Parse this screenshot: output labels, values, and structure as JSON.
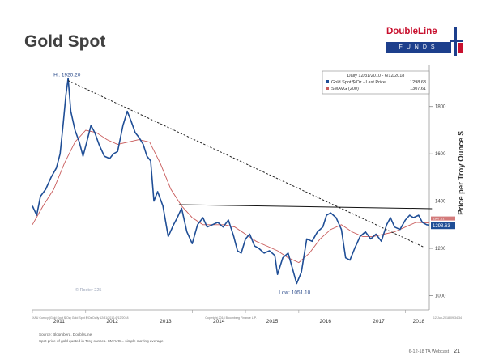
{
  "slide": {
    "title": "Gold Spot",
    "logo_top": "DoubleLine",
    "logo_bottom": "FUNDS",
    "source_line1": "Source: Bloomberg, DoubleLine",
    "source_line2": "Spot price of gold quoted in Troy ounces. SMAVG = simple moving average.",
    "footer_code": "6-12-18 TA Webcast",
    "page_number": "21",
    "bloomberg_left": "XAU Curncy (Gold Spot $/Oz) Gold Spot $/Oz Daily 12/31/2010-6/12/2018",
    "bloomberg_mid": "Copyright 2018 Bloomberg Finance L.P.",
    "bloomberg_right": "12-Jun-2018 09:34:34"
  },
  "colors": {
    "price_line": "#1f4e96",
    "moving_average": "#c85a5a",
    "downtrend": "#222222",
    "resistance": "#111111",
    "last_price_box": "#1f4e96"
  },
  "chart_data": {
    "type": "line",
    "ylabel": "Price per Troy Ounce $",
    "yticks": [
      1000,
      1200,
      1400,
      1600,
      1800
    ],
    "ylim": [
      940,
      1960
    ],
    "xlim": [
      2011.0,
      2018.45
    ],
    "year_labels": [
      "2011",
      "2012",
      "2013",
      "2014",
      "2015",
      "2016",
      "2017",
      "2018"
    ],
    "year_label_positions": [
      2011.5,
      2012.5,
      2013.5,
      2014.5,
      2015.5,
      2016.5,
      2017.5,
      2018.25
    ],
    "legend": {
      "header": "Daily 12/31/2010 - 6/12/2018",
      "series": [
        {
          "name": "Gold Spot $/Oz - Last Price",
          "value": "1298.63"
        },
        {
          "name": "SMAVG (200)",
          "value": "1307.61"
        }
      ]
    },
    "annotations": {
      "high_label": "Hi: 1920.20",
      "high": {
        "x": 2011.67,
        "y": 1920
      },
      "low_label": "Low: 1051.10",
      "low": {
        "x": 2015.96,
        "y": 1051
      },
      "last_price_label": "1298.63",
      "moving_average_label": "1307.61",
      "chart_note": "© Roster 225"
    },
    "trendlines": [
      {
        "name": "downtrend",
        "x": [
          2011.67,
          2018.35
        ],
        "y": [
          1910,
          1205
        ]
      },
      {
        "name": "resistance",
        "x": [
          2013.75,
          2018.5
        ],
        "y": [
          1385,
          1368
        ]
      }
    ],
    "series": [
      {
        "name": "Gold Spot $/Oz - Last Price",
        "x": [
          2011.0,
          2011.08,
          2011.15,
          2011.25,
          2011.35,
          2011.45,
          2011.52,
          2011.58,
          2011.63,
          2011.67,
          2011.72,
          2011.8,
          2011.88,
          2011.95,
          2012.02,
          2012.1,
          2012.17,
          2012.25,
          2012.35,
          2012.45,
          2012.52,
          2012.6,
          2012.7,
          2012.78,
          2012.85,
          2012.93,
          2013.0,
          2013.08,
          2013.15,
          2013.22,
          2013.28,
          2013.35,
          2013.45,
          2013.55,
          2013.65,
          2013.72,
          2013.8,
          2013.9,
          2014.0,
          2014.1,
          2014.2,
          2014.28,
          2014.38,
          2014.48,
          2014.58,
          2014.68,
          2014.78,
          2014.85,
          2014.92,
          2015.0,
          2015.08,
          2015.17,
          2015.25,
          2015.35,
          2015.45,
          2015.55,
          2015.6,
          2015.7,
          2015.8,
          2015.9,
          2015.96,
          2016.05,
          2016.15,
          2016.25,
          2016.35,
          2016.45,
          2016.52,
          2016.6,
          2016.7,
          2016.8,
          2016.88,
          2016.96,
          2017.05,
          2017.15,
          2017.25,
          2017.35,
          2017.45,
          2017.55,
          2017.65,
          2017.72,
          2017.8,
          2017.9,
          2018.0,
          2018.08,
          2018.15,
          2018.25,
          2018.32,
          2018.4,
          2018.45
        ],
        "values": [
          1380,
          1340,
          1420,
          1450,
          1500,
          1540,
          1600,
          1730,
          1850,
          1920,
          1780,
          1700,
          1650,
          1590,
          1650,
          1720,
          1690,
          1640,
          1590,
          1580,
          1600,
          1610,
          1720,
          1780,
          1740,
          1690,
          1670,
          1640,
          1590,
          1570,
          1400,
          1440,
          1380,
          1250,
          1300,
          1330,
          1370,
          1270,
          1220,
          1300,
          1330,
          1290,
          1300,
          1310,
          1290,
          1320,
          1250,
          1190,
          1180,
          1240,
          1260,
          1210,
          1200,
          1180,
          1190,
          1170,
          1090,
          1160,
          1180,
          1100,
          1051,
          1100,
          1240,
          1230,
          1270,
          1290,
          1340,
          1350,
          1330,
          1280,
          1160,
          1150,
          1200,
          1250,
          1270,
          1240,
          1260,
          1230,
          1300,
          1330,
          1290,
          1280,
          1320,
          1340,
          1330,
          1340,
          1310,
          1300,
          1298.63
        ]
      },
      {
        "name": "SMAVG (200)",
        "x": [
          2011.0,
          2011.2,
          2011.4,
          2011.6,
          2011.8,
          2012.0,
          2012.2,
          2012.4,
          2012.6,
          2012.8,
          2013.0,
          2013.2,
          2013.4,
          2013.6,
          2013.8,
          2014.0,
          2014.2,
          2014.4,
          2014.6,
          2014.8,
          2015.0,
          2015.2,
          2015.4,
          2015.6,
          2015.8,
          2016.0,
          2016.2,
          2016.4,
          2016.6,
          2016.8,
          2017.0,
          2017.2,
          2017.4,
          2017.6,
          2017.8,
          2018.0,
          2018.2,
          2018.45
        ],
        "values": [
          1300,
          1380,
          1450,
          1560,
          1650,
          1700,
          1690,
          1660,
          1640,
          1650,
          1660,
          1650,
          1560,
          1450,
          1380,
          1330,
          1300,
          1300,
          1300,
          1290,
          1260,
          1230,
          1210,
          1190,
          1160,
          1140,
          1180,
          1240,
          1280,
          1300,
          1270,
          1250,
          1250,
          1260,
          1270,
          1290,
          1310,
          1307.61
        ]
      }
    ]
  }
}
